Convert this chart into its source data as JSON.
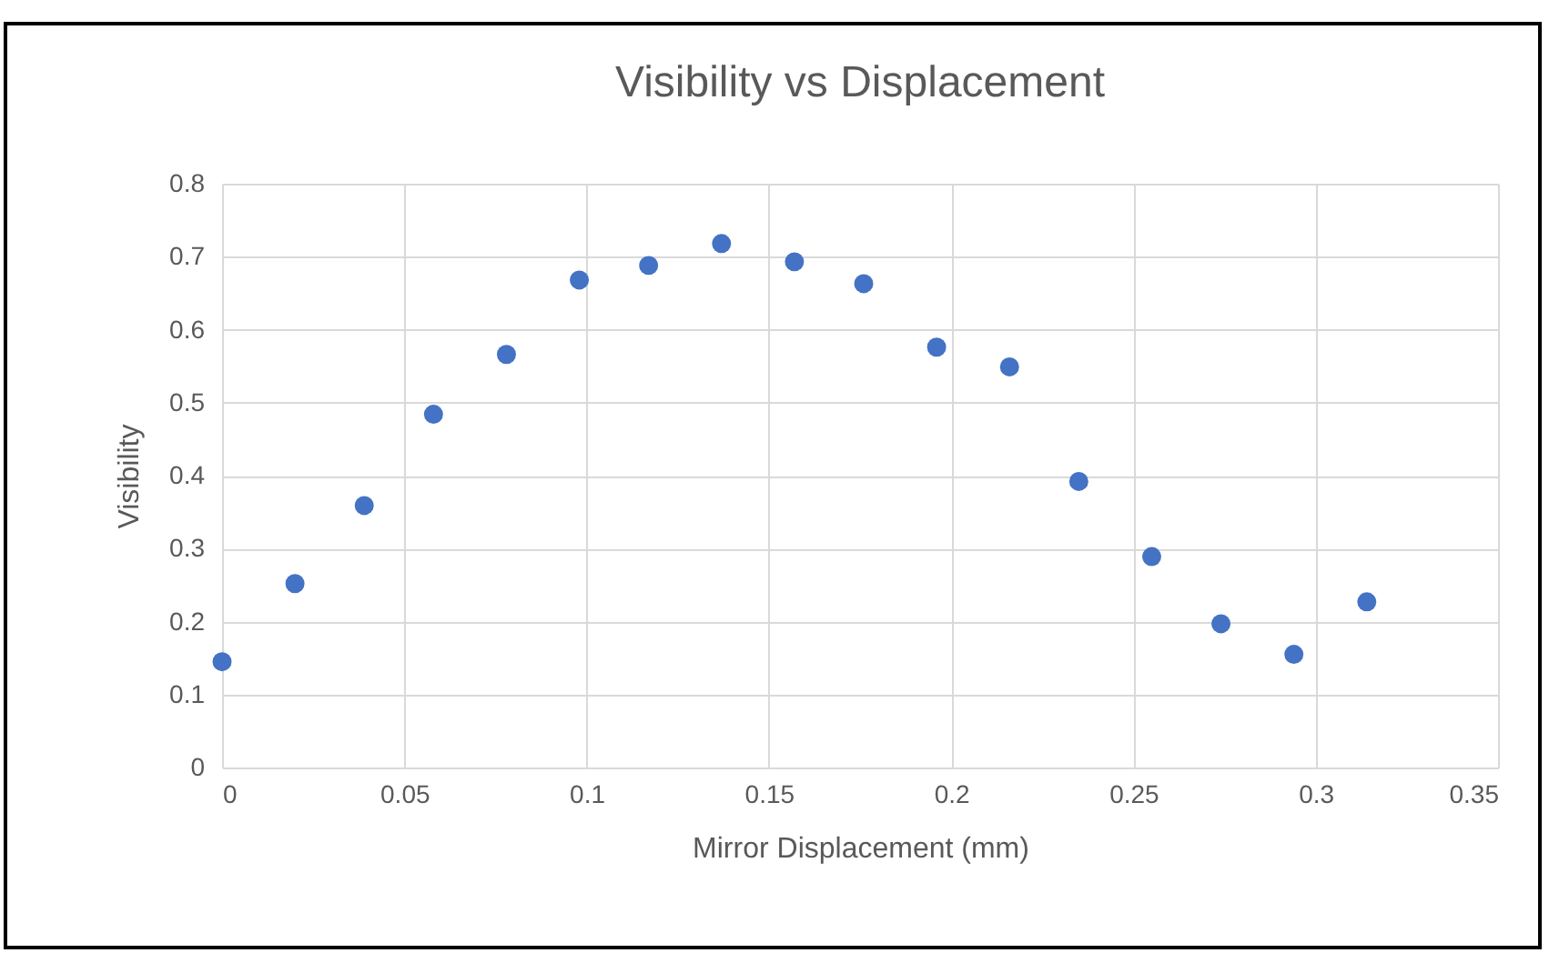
{
  "chart_data": {
    "type": "scatter",
    "title": "Visibility vs Displacement",
    "xlabel": "Mirror Displacement (mm)",
    "ylabel": "Visibility",
    "x": [
      0,
      0.02,
      0.039,
      0.058,
      0.078,
      0.098,
      0.117,
      0.137,
      0.157,
      0.176,
      0.196,
      0.216,
      0.235,
      0.255,
      0.274,
      0.294,
      0.314
    ],
    "series": [
      {
        "color": "#4472c4",
        "values": [
          0.145,
          0.252,
          0.359,
          0.484,
          0.566,
          0.668,
          0.688,
          0.718,
          0.693,
          0.663,
          0.576,
          0.549,
          0.392,
          0.289,
          0.197,
          0.155,
          0.227
        ]
      }
    ],
    "xlim": [
      0,
      0.35
    ],
    "xticks": [
      0,
      0.05,
      0.1,
      0.15,
      0.2,
      0.25,
      0.3,
      0.35
    ],
    "ylim": [
      0,
      0.8
    ],
    "yticks": [
      0,
      0.1,
      0.2,
      0.3,
      0.4,
      0.5,
      0.6,
      0.7,
      0.8
    ],
    "grid": true,
    "marker": "circle"
  }
}
